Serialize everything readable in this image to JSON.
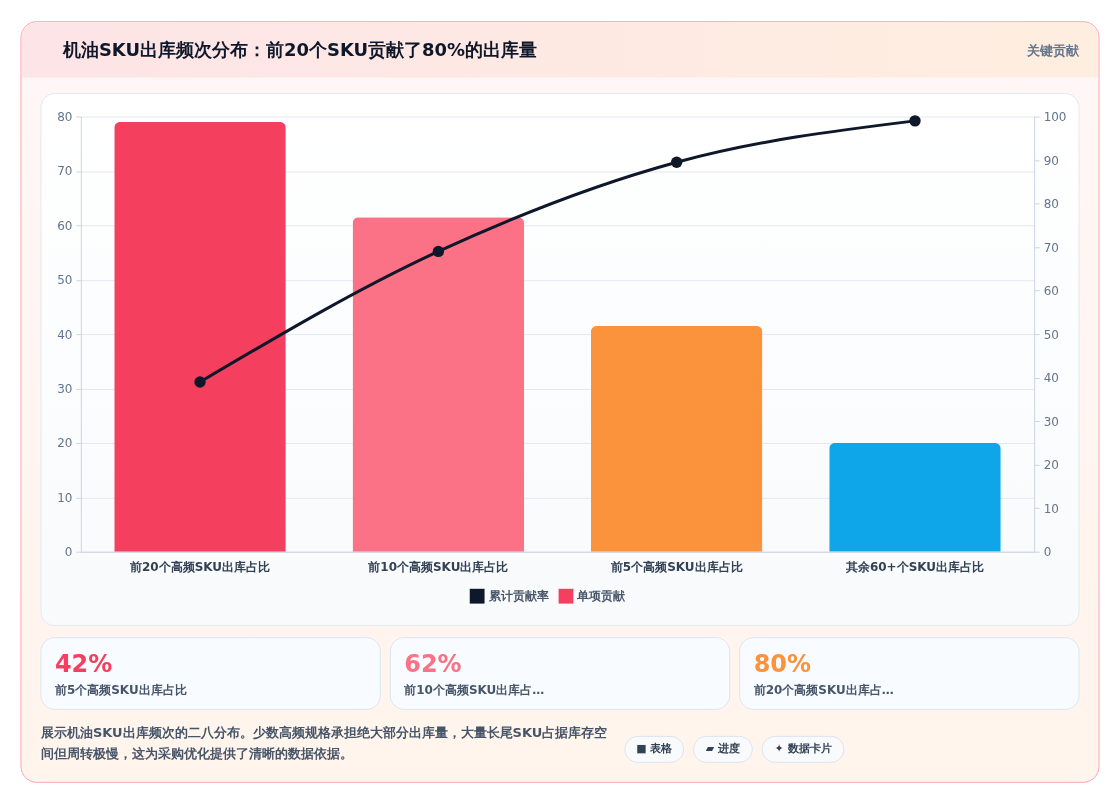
{
  "chart_data": [
    {
      "type": "bar",
      "title": "机油SKU出库频次分布：前20个SKU贡献了80%的出库量",
      "categories": [
        "前20个高频SKU出库占比",
        "前10个高频SKU出库占比",
        "前5个高频SKU出库占比",
        "其余60+个SKU出库占比"
      ],
      "series": [
        {
          "name": "累计贡献率",
          "type": "line",
          "axis": "y2",
          "color": "#0f172a",
          "values": [
            39,
            69,
            89.5,
            99
          ]
        },
        {
          "name": "单项贡献",
          "type": "bar",
          "color": "#f43f5e",
          "colors": [
            "#f43f5e",
            "#fb7185",
            "#fb923c",
            "#0ea5e9"
          ],
          "values": [
            79,
            61.5,
            41.5,
            20
          ]
        }
      ],
      "ylim": [
        0,
        80
      ],
      "yticks": [
        0,
        10,
        20,
        30,
        40,
        50,
        60,
        70,
        80
      ],
      "y2lim": [
        0,
        100
      ],
      "y2ticks": [
        0,
        10,
        20,
        30,
        40,
        50,
        60,
        70,
        80,
        90,
        100
      ],
      "grid": "y",
      "legend": "bottom",
      "marker": "circle",
      "line_style": "solid",
      "annotations": [
        "关键贡献",
        "展示机油SKU出库频次的二八分布。少数高频规格承担绝大部分出库量，大量长尾SKU占据库存空间但周转极慢，这为采购优化提供了清晰的数据依据。",
        "■ 表格",
        "▰ 进度",
        "✦ 数据卡片"
      ]
    },
    {
      "type": "other",
      "annotations": [
        "42%",
        "前5个高频SKU出库占比",
        "62%",
        "前10个高频SKU出库占…",
        "80%",
        "前20个高频SKU出库占…"
      ]
    }
  ]
}
